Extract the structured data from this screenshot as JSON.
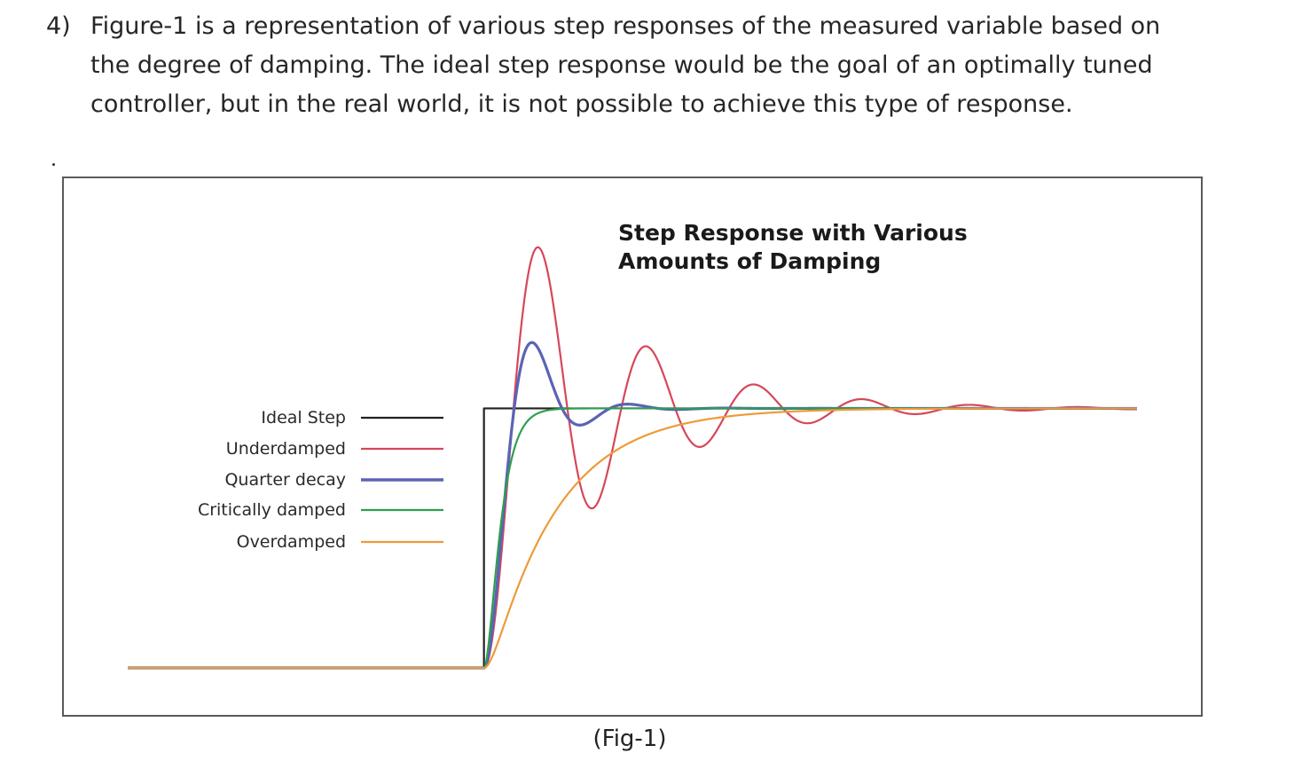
{
  "question": {
    "number": "4)",
    "text": "Figure-1 is a representation of various step responses of the measured variable based on the degree of damping.  The ideal step response would be the goal of an optimally tuned controller, but in the real world, it is not possible to achieve this type of response."
  },
  "caption": "(Fig-1)",
  "chart_data": {
    "type": "line",
    "title_lines": [
      "Step Response with Various",
      "Amounts of Damping"
    ],
    "xlabel": "",
    "ylabel": "",
    "xlim": [
      -3,
      5.5
    ],
    "ylim": [
      0,
      1.75
    ],
    "grid": false,
    "legend_position": "left",
    "step_time": 0,
    "setpoint": 1,
    "series": [
      {
        "name": "Ideal Step",
        "color": "#222222",
        "model": "step"
      },
      {
        "name": "Underdamped",
        "color": "#d6475a",
        "model": "second-order",
        "zeta": 0.15,
        "omega": 7.0
      },
      {
        "name": "Quarter decay",
        "color": "#5b63b5",
        "model": "second-order",
        "zeta": 0.4,
        "omega": 8.5
      },
      {
        "name": "Critically damped",
        "color": "#2f9e4f",
        "model": "second-order",
        "zeta": 1.0,
        "omega": 13.0
      },
      {
        "name": "Overdamped",
        "color": "#ee9a3a",
        "model": "second-order",
        "zeta": 1.6,
        "omega": 5.0
      }
    ]
  }
}
